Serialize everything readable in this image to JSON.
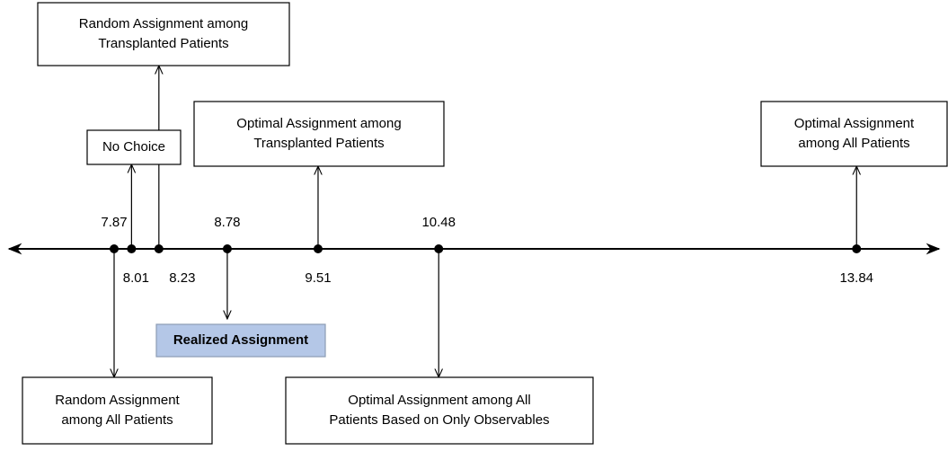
{
  "points": [
    7.87,
    8.01,
    8.23,
    8.78,
    9.51,
    10.48,
    13.84
  ],
  "boxes": [
    {
      "lines": [
        "Random Assignment among",
        "Transplanted Patients"
      ]
    },
    {
      "lines": [
        "No Choice"
      ]
    },
    {
      "lines": [
        "Optimal Assignment among",
        "Transplanted Patients"
      ]
    },
    {
      "lines": [
        "Optimal Assignment",
        "among All Patients"
      ]
    },
    {
      "lines": [
        "Realized Assignment"
      ]
    },
    {
      "lines": [
        "Random Assignment",
        "among All Patients"
      ]
    },
    {
      "lines": [
        "Optimal Assignment among All",
        "Patients Based on Only Observables"
      ]
    }
  ]
}
